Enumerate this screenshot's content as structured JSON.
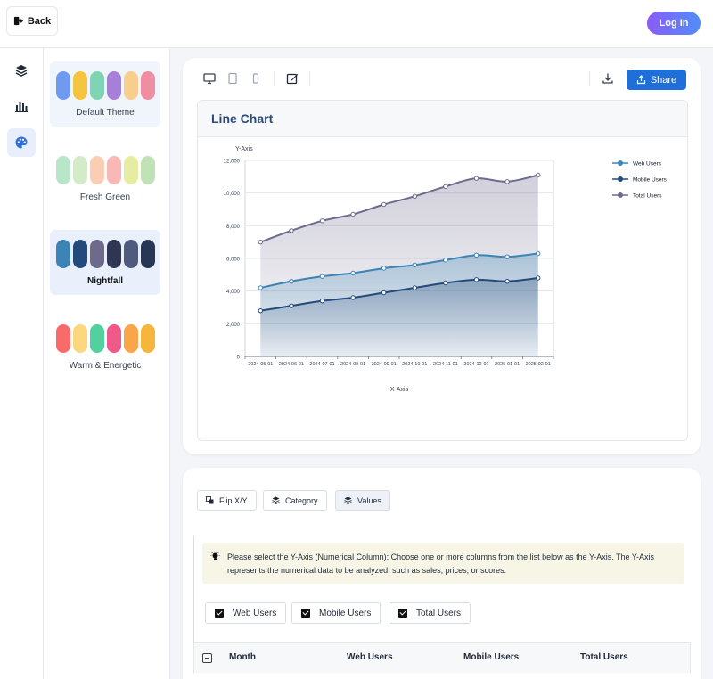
{
  "header": {
    "back_label": "Back",
    "login_label": "Log In"
  },
  "rail": {
    "items": [
      {
        "icon": "layers-icon"
      },
      {
        "icon": "bar-chart-icon"
      },
      {
        "icon": "palette-icon",
        "active": true
      }
    ]
  },
  "themes": [
    {
      "name": "Default Theme",
      "colors": [
        "#6f9af1",
        "#f5c542",
        "#7fd4b3",
        "#a67fd8",
        "#f8ce8c",
        "#ef8ea2"
      ]
    },
    {
      "name": "Fresh Green",
      "colors": [
        "#b9e5c9",
        "#d3ecc7",
        "#fbcdb3",
        "#f9b8b6",
        "#e7eda0",
        "#bfe3b5"
      ]
    },
    {
      "name": "Nightfall",
      "colors": [
        "#3b84b5",
        "#234a7a",
        "#6d6a8c",
        "#2f3654",
        "#4f5b7d",
        "#263654"
      ],
      "active": true
    },
    {
      "name": "Warm & Energetic",
      "colors": [
        "#f96b6b",
        "#fcd77e",
        "#52d19e",
        "#ef5a8a",
        "#f9a54a",
        "#f7b53c"
      ]
    }
  ],
  "toolbar": {
    "icons": [
      "desktop-icon",
      "tablet-icon",
      "mobile-icon",
      "edit-icon",
      "download-icon",
      "share-icon"
    ],
    "share_label": "Share"
  },
  "chart_data": {
    "type": "area",
    "title": "Line Chart",
    "xlabel": "X-Axis",
    "ylabel": "Y-Axis",
    "x": [
      "2024-05-01",
      "2024-06-01",
      "2024-07-01",
      "2024-08-01",
      "2024-09-01",
      "2024-10-01",
      "2024-11-01",
      "2024-12-01",
      "2025-01-01",
      "2025-02-01"
    ],
    "ylim": [
      0,
      12000
    ],
    "yticks": [
      0,
      2000,
      4000,
      6000,
      8000,
      10000,
      12000
    ],
    "ytick_labels": [
      "0",
      "2,000",
      "4,000",
      "6,000",
      "8,000",
      "10,000",
      "12,000"
    ],
    "grid": true,
    "legend_position": "right",
    "series": [
      {
        "name": "Web Users",
        "color": "#3b84b5",
        "values": [
          4200,
          4600,
          4900,
          5100,
          5400,
          5600,
          5900,
          6200,
          6100,
          6300
        ]
      },
      {
        "name": "Mobile Users",
        "color": "#234a7a",
        "values": [
          2800,
          3100,
          3400,
          3600,
          3900,
          4200,
          4500,
          4700,
          4600,
          4800
        ]
      },
      {
        "name": "Total Users",
        "color": "#6d6a8c",
        "values": [
          7000,
          7700,
          8300,
          8700,
          9300,
          9800,
          10400,
          10900,
          10700,
          11100
        ]
      }
    ]
  },
  "data_panel": {
    "tabs": [
      {
        "label": "Flip X/Y",
        "icon": "flip-icon"
      },
      {
        "label": "Category",
        "icon": "layers-icon"
      },
      {
        "label": "Values",
        "icon": "layers-icon",
        "active": true
      }
    ],
    "notice": "Please select the Y-Axis (Numerical Column): Choose one or more columns from the list below as the Y-Axis. The Y-Axis represents the numerical data to be analyzed, such as sales, prices, or scores.",
    "columns": [
      {
        "label": "Web Users",
        "checked": true
      },
      {
        "label": "Mobile Users",
        "checked": true
      },
      {
        "label": "Total Users",
        "checked": true
      }
    ],
    "table_headers": [
      "Month",
      "Web Users",
      "Mobile Users",
      "Total Users"
    ]
  }
}
